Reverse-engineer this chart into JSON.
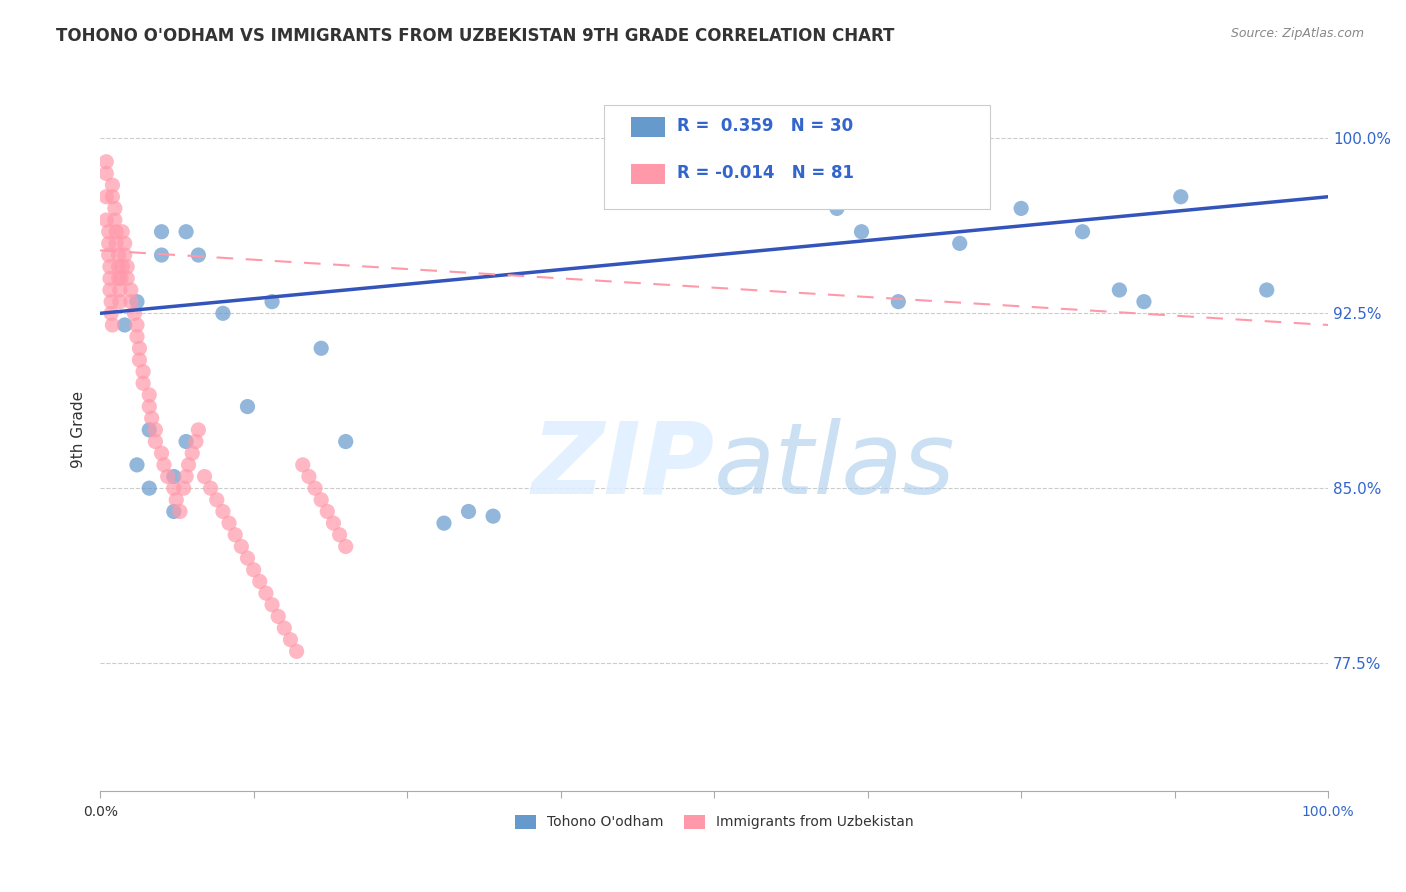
{
  "title": "TOHONO O'ODHAM VS IMMIGRANTS FROM UZBEKISTAN 9TH GRADE CORRELATION CHART",
  "source": "Source: ZipAtlas.com",
  "xlabel_bottom_left": "0.0%",
  "xlabel_bottom_right": "100.0%",
  "ylabel": "9th Grade",
  "ytick_labels": [
    "77.5%",
    "85.0%",
    "92.5%",
    "100.0%"
  ],
  "ytick_values": [
    0.775,
    0.85,
    0.925,
    1.0
  ],
  "xlim": [
    0.0,
    1.0
  ],
  "ylim": [
    0.72,
    1.03
  ],
  "legend_blue_r": "0.359",
  "legend_blue_n": "30",
  "legend_pink_r": "-0.014",
  "legend_pink_n": "81",
  "blue_color": "#6699CC",
  "pink_color": "#FF99AA",
  "trendline_blue_color": "#3355BB",
  "trendline_pink_color": "#FF99AA",
  "blue_label": "Tohono O'odham",
  "pink_label": "Immigrants from Uzbekistan",
  "blue_trend_y_start": 0.925,
  "blue_trend_y_end": 0.975,
  "pink_trend_y_start": 0.952,
  "pink_trend_y_end": 0.92,
  "blue_scatter_x": [
    0.02,
    0.03,
    0.03,
    0.04,
    0.04,
    0.05,
    0.05,
    0.06,
    0.06,
    0.07,
    0.07,
    0.08,
    0.1,
    0.12,
    0.14,
    0.18,
    0.2,
    0.28,
    0.3,
    0.32,
    0.6,
    0.62,
    0.65,
    0.7,
    0.75,
    0.8,
    0.83,
    0.85,
    0.88,
    0.95
  ],
  "blue_scatter_y": [
    0.92,
    0.93,
    0.86,
    0.875,
    0.85,
    0.95,
    0.96,
    0.855,
    0.84,
    0.87,
    0.96,
    0.95,
    0.925,
    0.885,
    0.93,
    0.91,
    0.87,
    0.835,
    0.84,
    0.838,
    0.97,
    0.96,
    0.93,
    0.955,
    0.97,
    0.96,
    0.935,
    0.93,
    0.975,
    0.935
  ],
  "pink_scatter_x": [
    0.005,
    0.005,
    0.005,
    0.005,
    0.007,
    0.007,
    0.007,
    0.008,
    0.008,
    0.008,
    0.009,
    0.009,
    0.01,
    0.01,
    0.01,
    0.012,
    0.012,
    0.013,
    0.013,
    0.015,
    0.015,
    0.015,
    0.016,
    0.016,
    0.017,
    0.018,
    0.018,
    0.02,
    0.02,
    0.022,
    0.022,
    0.025,
    0.025,
    0.028,
    0.03,
    0.03,
    0.032,
    0.032,
    0.035,
    0.035,
    0.04,
    0.04,
    0.042,
    0.045,
    0.045,
    0.05,
    0.052,
    0.055,
    0.06,
    0.062,
    0.065,
    0.068,
    0.07,
    0.072,
    0.075,
    0.078,
    0.08,
    0.085,
    0.09,
    0.095,
    0.1,
    0.105,
    0.11,
    0.115,
    0.12,
    0.125,
    0.13,
    0.135,
    0.14,
    0.145,
    0.15,
    0.155,
    0.16,
    0.165,
    0.17,
    0.175,
    0.18,
    0.185,
    0.19,
    0.195,
    0.2
  ],
  "pink_scatter_y": [
    0.99,
    0.985,
    0.975,
    0.965,
    0.96,
    0.955,
    0.95,
    0.945,
    0.94,
    0.935,
    0.93,
    0.925,
    0.92,
    0.975,
    0.98,
    0.97,
    0.965,
    0.96,
    0.955,
    0.95,
    0.945,
    0.94,
    0.935,
    0.93,
    0.94,
    0.945,
    0.96,
    0.955,
    0.95,
    0.945,
    0.94,
    0.935,
    0.93,
    0.925,
    0.92,
    0.915,
    0.91,
    0.905,
    0.9,
    0.895,
    0.89,
    0.885,
    0.88,
    0.875,
    0.87,
    0.865,
    0.86,
    0.855,
    0.85,
    0.845,
    0.84,
    0.85,
    0.855,
    0.86,
    0.865,
    0.87,
    0.875,
    0.855,
    0.85,
    0.845,
    0.84,
    0.835,
    0.83,
    0.825,
    0.82,
    0.815,
    0.81,
    0.805,
    0.8,
    0.795,
    0.79,
    0.785,
    0.78,
    0.86,
    0.855,
    0.85,
    0.845,
    0.84,
    0.835,
    0.83,
    0.825
  ]
}
